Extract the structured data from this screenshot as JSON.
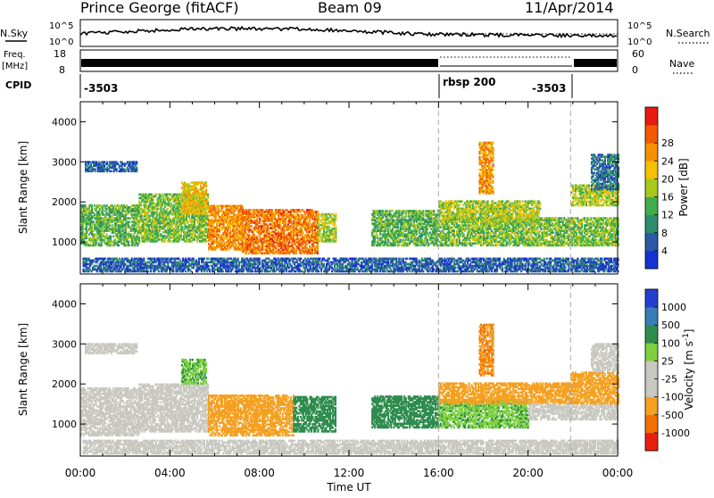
{
  "header": {
    "station": "Prince George (fitACF)",
    "beam": "Beam 09",
    "date": "11/Apr/2014"
  },
  "status_panel": {
    "nsky_label": "N.Sky",
    "nsky_ticks": [
      "10^5",
      "10^0"
    ],
    "nsearch_label": "N.Search",
    "freq_label_1": "Freq.",
    "freq_label_2": "[MHz]",
    "freq_ticks": [
      "18",
      "8"
    ],
    "nave_label": "Nave",
    "nave_ticks": [
      "60",
      "0"
    ],
    "cpid_label": "CPID",
    "cpid_entries": [
      {
        "label": "-3503",
        "start_hour": 0
      },
      {
        "label": "rbsp 200",
        "start_hour": 16
      },
      {
        "label": "-3503",
        "start_hour": 21.9
      }
    ]
  },
  "chart_data": [
    {
      "type": "heatmap",
      "name": "power",
      "ylabel": "Slant Range [km]",
      "xlabel": "",
      "xlim": [
        0,
        24
      ],
      "ylim": [
        200,
        4500
      ],
      "yticks": [
        1000,
        2000,
        3000,
        4000
      ],
      "colorbar_label": "Power [dB]",
      "colorbar_ticks": [
        "4",
        "8",
        "12",
        "16",
        "20",
        "24",
        "28"
      ],
      "colorbar_colors": [
        "#1432d2",
        "#2b58a8",
        "#2e8c6e",
        "#3fae4a",
        "#a8c81e",
        "#f5c000",
        "#f59000",
        "#f25a00",
        "#e81a10"
      ],
      "regions": [
        {
          "t0": 0,
          "t1": 2.6,
          "r0": 900,
          "r1": 1900,
          "level": 14
        },
        {
          "t0": 0.2,
          "t1": 2.5,
          "r0": 2750,
          "r1": 3000,
          "level": 6
        },
        {
          "t0": 2.6,
          "t1": 5.7,
          "r0": 1000,
          "r1": 2200,
          "level": 16
        },
        {
          "t0": 4.5,
          "t1": 5.6,
          "r0": 1700,
          "r1": 2500,
          "level": 22
        },
        {
          "t0": 5.7,
          "t1": 7.2,
          "r0": 800,
          "r1": 1900,
          "level": 26
        },
        {
          "t0": 7.2,
          "t1": 10.6,
          "r0": 700,
          "r1": 1800,
          "level": 28
        },
        {
          "t0": 10.6,
          "t1": 11.4,
          "r0": 1000,
          "r1": 1700,
          "level": 18
        },
        {
          "t0": 13.0,
          "t1": 16.0,
          "r0": 900,
          "r1": 1800,
          "level": 14
        },
        {
          "t0": 16.0,
          "t1": 24.0,
          "r0": 900,
          "r1": 1600,
          "level": 16
        },
        {
          "t0": 16.0,
          "t1": 20.5,
          "r0": 1500,
          "r1": 2000,
          "level": 18
        },
        {
          "t0": 17.8,
          "t1": 18.4,
          "r0": 2200,
          "r1": 3500,
          "level": 26
        },
        {
          "t0": 21.9,
          "t1": 24.0,
          "r0": 1900,
          "r1": 2400,
          "level": 18
        },
        {
          "t0": 22.8,
          "t1": 24.0,
          "r0": 2300,
          "r1": 3200,
          "level": 8
        },
        {
          "t0": 0.1,
          "t1": 24.0,
          "r0": 250,
          "r1": 600,
          "level": 6
        }
      ]
    },
    {
      "type": "heatmap",
      "name": "velocity",
      "ylabel": "Slant Range [km]",
      "xlabel": "Time UT",
      "xlim": [
        0,
        24
      ],
      "ylim": [
        200,
        4500
      ],
      "xticks": [
        "00:00",
        "04:00",
        "08:00",
        "12:00",
        "16:00",
        "20:00",
        "00:00"
      ],
      "yticks": [
        1000,
        2000,
        3000,
        4000
      ],
      "colorbar_label": "Velocity [m s^-1]",
      "colorbar_ticks": [
        "1000",
        "500",
        "100",
        "25",
        "-25",
        "-100",
        "-500",
        "-1000"
      ],
      "colorbar_colors": [
        "#2240d0",
        "#3a7cb8",
        "#2e8c4e",
        "#7ed040",
        "#c8c8c0",
        "#c8c8c0",
        "#f5a020",
        "#f27000",
        "#e82010"
      ],
      "regions": [
        {
          "t0": 0,
          "t1": 2.6,
          "r0": 700,
          "r1": 1900,
          "level": 0
        },
        {
          "t0": 0.2,
          "t1": 2.5,
          "r0": 2750,
          "r1": 3000,
          "level": 0
        },
        {
          "t0": 2.6,
          "t1": 5.7,
          "r0": 800,
          "r1": 2000,
          "level": 0
        },
        {
          "t0": 4.5,
          "t1": 5.6,
          "r0": 2000,
          "r1": 2600,
          "level": 80
        },
        {
          "t0": 5.7,
          "t1": 9.5,
          "r0": 700,
          "r1": 1700,
          "level": -300
        },
        {
          "t0": 9.5,
          "t1": 11.4,
          "r0": 800,
          "r1": 1700,
          "level": 200
        },
        {
          "t0": 13.0,
          "t1": 16.0,
          "r0": 900,
          "r1": 1700,
          "level": 300
        },
        {
          "t0": 16.0,
          "t1": 20.0,
          "r0": 900,
          "r1": 1600,
          "level": 80
        },
        {
          "t0": 16.0,
          "t1": 21.9,
          "r0": 1500,
          "r1": 2000,
          "level": -300
        },
        {
          "t0": 17.8,
          "t1": 18.4,
          "r0": 2200,
          "r1": 3500,
          "level": -500
        },
        {
          "t0": 20.0,
          "t1": 24.0,
          "r0": 1100,
          "r1": 1500,
          "level": 0
        },
        {
          "t0": 21.9,
          "t1": 24.0,
          "r0": 1500,
          "r1": 2300,
          "level": -300
        },
        {
          "t0": 22.8,
          "t1": 24.0,
          "r0": 2300,
          "r1": 3000,
          "level": 0
        },
        {
          "t0": 0.1,
          "t1": 24.0,
          "r0": 250,
          "r1": 600,
          "level": -60
        }
      ]
    }
  ]
}
